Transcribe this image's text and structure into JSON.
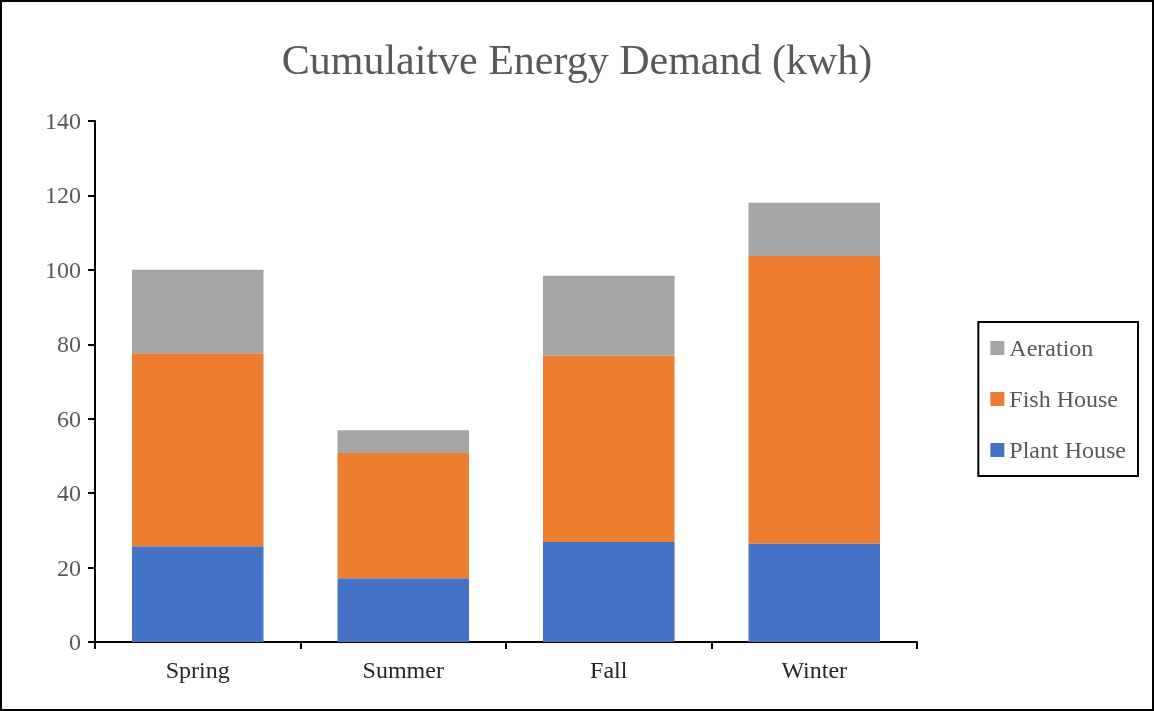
{
  "chart_data": {
    "type": "bar",
    "title": "Cumulaitve Energy Demand (kwh)",
    "categories": [
      "Spring",
      "Summer",
      "Fall",
      "Winter"
    ],
    "stacked": true,
    "series": [
      {
        "name": "Plant House",
        "color": "#4472c4",
        "values": [
          25.7,
          17.1,
          26.9,
          26.5
        ]
      },
      {
        "name": "Fish House",
        "color": "#ed7d31",
        "values": [
          51.9,
          33.7,
          50.1,
          77.2
        ]
      },
      {
        "name": "Aeration",
        "color": "#a5a5a5",
        "values": [
          22.4,
          6.1,
          21.4,
          14.3
        ]
      }
    ],
    "ylim": [
      0,
      140
    ],
    "yticks": [
      0,
      20,
      40,
      60,
      80,
      100,
      120,
      140
    ],
    "grid": false,
    "legend": "right"
  }
}
